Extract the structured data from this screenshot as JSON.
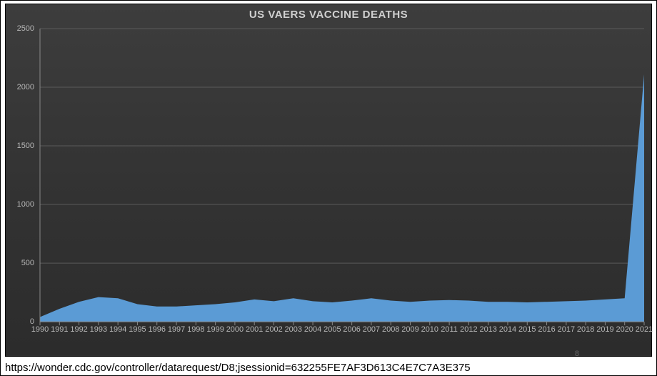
{
  "chart": {
    "type": "area",
    "title": "US VAERS VACCINE DEATHS",
    "title_fontsize": 15,
    "title_color": "#d0d0d0",
    "background_gradient_top": "#3d3d3d",
    "background_gradient_bottom": "#2c2c2c",
    "grid_color": "#5a5a5a",
    "axis_color": "#888888",
    "tick_label_color": "#b8b8b8",
    "tick_label_fontsize": 11,
    "area_fill_color": "#5b9bd5",
    "ylim": [
      0,
      2500
    ],
    "ytick_step": 500,
    "yticks": [
      0,
      500,
      1000,
      1500,
      2000,
      2500
    ],
    "years": [
      1990,
      1991,
      1992,
      1993,
      1994,
      1995,
      1996,
      1997,
      1998,
      1999,
      2000,
      2001,
      2002,
      2003,
      2004,
      2005,
      2006,
      2007,
      2008,
      2009,
      2010,
      2011,
      2012,
      2013,
      2014,
      2015,
      2016,
      2017,
      2018,
      2019,
      2020,
      2021
    ],
    "values": [
      40,
      110,
      170,
      210,
      200,
      150,
      130,
      130,
      140,
      150,
      165,
      190,
      175,
      200,
      175,
      165,
      180,
      200,
      180,
      170,
      180,
      185,
      180,
      170,
      170,
      165,
      170,
      175,
      180,
      190,
      200,
      2110
    ]
  },
  "footer": {
    "source_url": "https://wonder.cdc.gov/controller/datarequest/D8;jsessionid=632255FE7AF3D613C4E7C7A3E375",
    "page_number": "8"
  }
}
